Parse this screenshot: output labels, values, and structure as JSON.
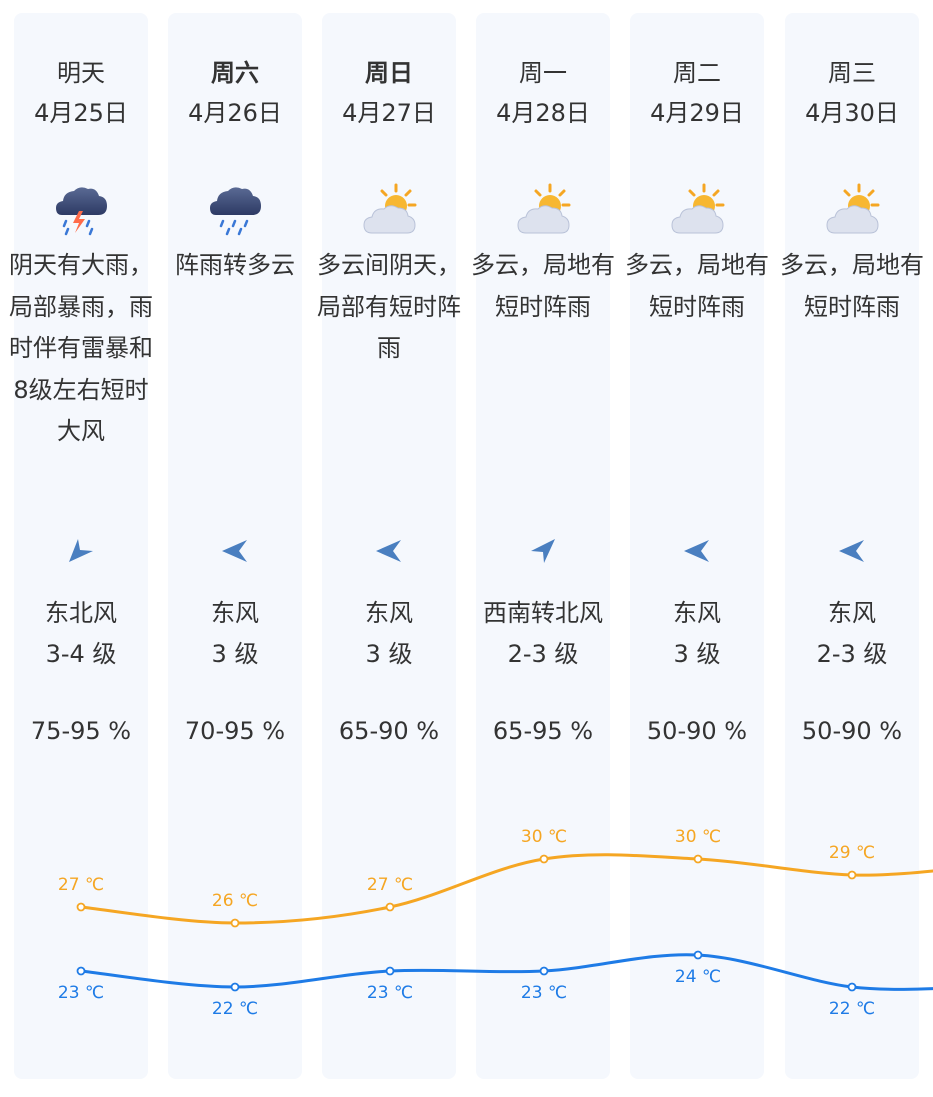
{
  "days": [
    {
      "day": "明天",
      "bold": false,
      "date": "4月25日",
      "icon": "thunderstorm-rain-icon",
      "desc": "阴天有大雨，局部暴雨，雨时伴有雷暴和8级左右短时大风",
      "wind_icon": "wind-arrow-northeast-icon",
      "wind_dir": "东北风",
      "wind_level": "3-4 级",
      "humidity": "75-95 %"
    },
    {
      "day": "周六",
      "bold": true,
      "date": "4月26日",
      "icon": "rain-cloud-icon",
      "desc": "阵雨转多云",
      "wind_icon": "wind-arrow-east-icon",
      "wind_dir": "东风",
      "wind_level": "3 级",
      "humidity": "70-95 %"
    },
    {
      "day": "周日",
      "bold": true,
      "date": "4月27日",
      "icon": "partly-cloudy-icon",
      "desc": "多云间阴天，局部有短时阵雨",
      "wind_icon": "wind-arrow-east-icon",
      "wind_dir": "东风",
      "wind_level": "3 级",
      "humidity": "65-90 %"
    },
    {
      "day": "周一",
      "bold": false,
      "date": "4月28日",
      "icon": "partly-cloudy-icon",
      "desc": "多云，局地有短时阵雨",
      "wind_icon": "wind-arrow-southwest-icon",
      "wind_dir": "西南转北风",
      "wind_level": "2-3 级",
      "humidity": "65-95 %"
    },
    {
      "day": "周二",
      "bold": false,
      "date": "4月29日",
      "icon": "partly-cloudy-icon",
      "desc": "多云，局地有短时阵雨",
      "wind_icon": "wind-arrow-east-icon",
      "wind_dir": "东风",
      "wind_level": "3 级",
      "humidity": "50-90 %"
    },
    {
      "day": "周三",
      "bold": false,
      "date": "4月30日",
      "icon": "partly-cloudy-icon",
      "desc": "多云，局地有短时阵雨",
      "wind_icon": "wind-arrow-east-icon",
      "wind_dir": "东风",
      "wind_level": "2-3 级",
      "humidity": "50-90 %"
    }
  ],
  "chart_data": {
    "type": "line",
    "categories": [
      "4月25日",
      "4月26日",
      "4月27日",
      "4月28日",
      "4月29日",
      "4月30日"
    ],
    "series": [
      {
        "values": [
          27,
          26,
          27,
          30,
          30,
          29
        ],
        "color": "#f5a623",
        "labels": [
          "27 ℃",
          "26 ℃",
          "27 ℃",
          "30 ℃",
          "30 ℃",
          "29 ℃"
        ]
      },
      {
        "values": [
          23,
          22,
          23,
          23,
          24,
          22
        ],
        "color": "#1e7be6",
        "labels": [
          "23 ℃",
          "22 ℃",
          "23 ℃",
          "23 ℃",
          "24 ℃",
          "22 ℃"
        ]
      }
    ]
  },
  "colors": {
    "column_bg": "#f5f8fd",
    "wind_arrow": "#4a7fc0",
    "high_temp": "#f5a623",
    "low_temp": "#1e7be6"
  }
}
